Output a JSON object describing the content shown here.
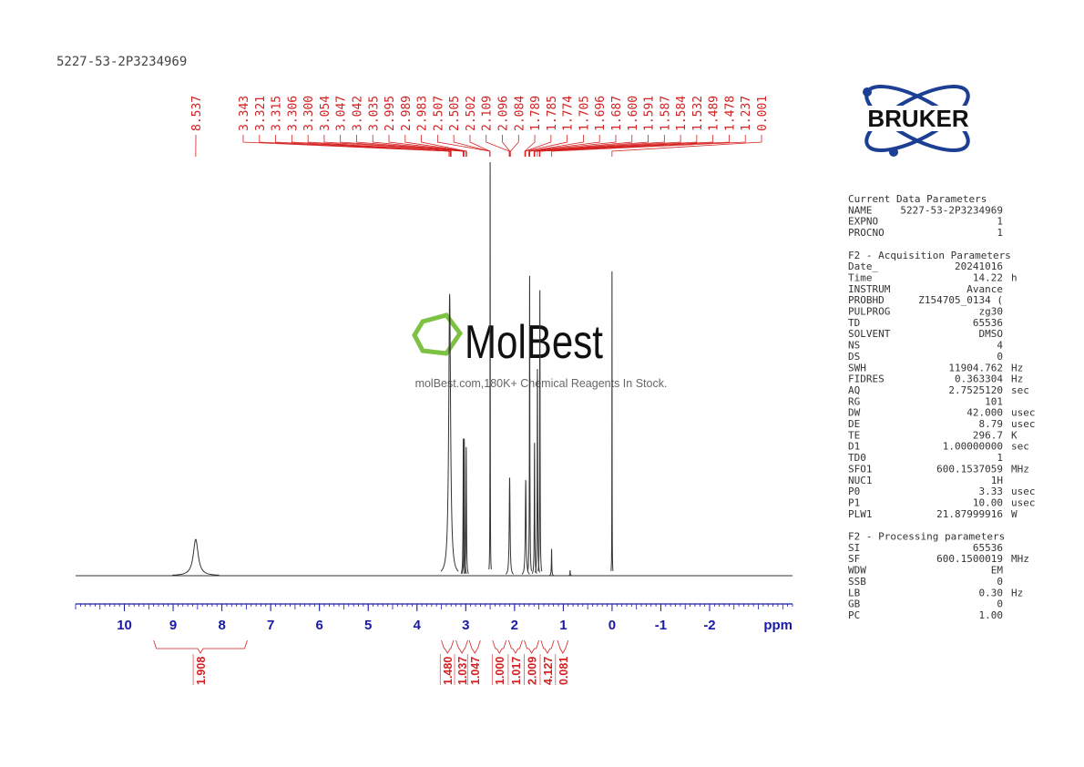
{
  "header": {
    "title": "5227-53-2P3234969"
  },
  "logo": {
    "text": "BRUKER"
  },
  "watermark": {
    "brand": "MolBest",
    "tagline": "molBest.com,180K+ Chemical Reagents In Stock."
  },
  "chart_data": {
    "type": "nmr",
    "xlim": [
      11,
      -3.7
    ],
    "xticks": [
      10,
      9,
      8,
      7,
      6,
      5,
      4,
      3,
      2,
      1,
      0,
      -1,
      -2
    ],
    "x_unit": "ppm",
    "ylim": [
      0,
      100
    ],
    "color": "#333333",
    "axis_color": "#1a1aa6",
    "annotation_color": "#d42020",
    "peaks": [
      {
        "ppm": 8.537,
        "intensity": 8.8,
        "fwhm": 0.12
      },
      {
        "ppm": 3.33,
        "intensity": 68,
        "fwhm": 0.045
      },
      {
        "ppm": 3.05,
        "intensity": 33,
        "fwhm": 0.012
      },
      {
        "ppm": 3.03,
        "intensity": 33,
        "fwhm": 0.012
      },
      {
        "ppm": 2.99,
        "intensity": 31,
        "fwhm": 0.012
      },
      {
        "ppm": 2.5,
        "intensity": 100,
        "fwhm": 0.006
      },
      {
        "ppm": 2.1,
        "intensity": 23.6,
        "fwhm": 0.02
      },
      {
        "ppm": 1.77,
        "intensity": 23,
        "fwhm": 0.02
      },
      {
        "ppm": 1.69,
        "intensity": 72.5,
        "fwhm": 0.01
      },
      {
        "ppm": 1.59,
        "intensity": 32,
        "fwhm": 0.012
      },
      {
        "ppm": 1.53,
        "intensity": 50,
        "fwhm": 0.012
      },
      {
        "ppm": 1.48,
        "intensity": 69,
        "fwhm": 0.01
      },
      {
        "ppm": 1.24,
        "intensity": 6.4,
        "fwhm": 0.01
      },
      {
        "ppm": 0.86,
        "intensity": 1.2,
        "fwhm": 0.01
      },
      {
        "ppm": 0.001,
        "intensity": 73.6,
        "fwhm": 0.005
      }
    ],
    "peak_labels": [
      {
        "value": 8.537,
        "label": "8.537"
      },
      {
        "value": 3.343,
        "label": "3.343"
      },
      {
        "value": 3.321,
        "label": "3.321"
      },
      {
        "value": 3.315,
        "label": "3.315"
      },
      {
        "value": 3.306,
        "label": "3.306"
      },
      {
        "value": 3.3,
        "label": "3.300"
      },
      {
        "value": 3.054,
        "label": "3.054"
      },
      {
        "value": 3.047,
        "label": "3.047"
      },
      {
        "value": 3.042,
        "label": "3.042"
      },
      {
        "value": 3.035,
        "label": "3.035"
      },
      {
        "value": 2.995,
        "label": "2.995"
      },
      {
        "value": 2.989,
        "label": "2.989"
      },
      {
        "value": 2.983,
        "label": "2.983"
      },
      {
        "value": 2.507,
        "label": "2.507"
      },
      {
        "value": 2.505,
        "label": "2.505"
      },
      {
        "value": 2.502,
        "label": "2.502"
      },
      {
        "value": 2.109,
        "label": "2.109"
      },
      {
        "value": 2.096,
        "label": "2.096"
      },
      {
        "value": 2.084,
        "label": "2.084"
      },
      {
        "value": 1.789,
        "label": "1.789"
      },
      {
        "value": 1.785,
        "label": "1.785"
      },
      {
        "value": 1.774,
        "label": "1.774"
      },
      {
        "value": 1.705,
        "label": "1.705"
      },
      {
        "value": 1.696,
        "label": "1.696"
      },
      {
        "value": 1.687,
        "label": "1.687"
      },
      {
        "value": 1.6,
        "label": "1.600"
      },
      {
        "value": 1.591,
        "label": "1.591"
      },
      {
        "value": 1.587,
        "label": "1.587"
      },
      {
        "value": 1.584,
        "label": "1.584"
      },
      {
        "value": 1.532,
        "label": "1.532"
      },
      {
        "value": 1.489,
        "label": "1.489"
      },
      {
        "value": 1.478,
        "label": "1.478"
      },
      {
        "value": 1.237,
        "label": "1.237"
      },
      {
        "value": 0.001,
        "label": "0.001"
      }
    ],
    "integrals": [
      {
        "range": [
          9.4,
          7.48
        ],
        "label": "1.908"
      },
      {
        "range": [
          3.5,
          3.25
        ],
        "label": "1.480"
      },
      {
        "range": [
          3.2,
          2.96
        ],
        "label": "1.037"
      },
      {
        "range": [
          2.93,
          2.7
        ],
        "label": "1.047"
      },
      {
        "range": [
          2.45,
          2.17
        ],
        "label": "1.000"
      },
      {
        "range": [
          2.12,
          1.84
        ],
        "label": "1.017"
      },
      {
        "range": [
          1.8,
          1.5
        ],
        "label": "2.009"
      },
      {
        "range": [
          1.46,
          1.19
        ],
        "label": "4.127"
      },
      {
        "range": [
          1.12,
          0.9
        ],
        "label": "0.081"
      }
    ]
  },
  "parameters": [
    {
      "title": "Current Data Parameters",
      "rows": [
        {
          "key": "NAME",
          "value": "5227-53-2P3234969"
        },
        {
          "key": "EXPNO",
          "value": "1"
        },
        {
          "key": "PROCNO",
          "value": "1"
        }
      ]
    },
    {
      "title": "F2 - Acquisition Parameters",
      "rows": [
        {
          "key": "Date_",
          "value": "20241016"
        },
        {
          "key": "Time",
          "value": "14.22",
          "unit": "h"
        },
        {
          "key": "INSTRUM",
          "value": "Avance"
        },
        {
          "key": "PROBHD",
          "value": "Z154705_0134 ("
        },
        {
          "key": "PULPROG",
          "value": "zg30"
        },
        {
          "key": "TD",
          "value": "65536"
        },
        {
          "key": "SOLVENT",
          "value": "DMSO"
        },
        {
          "key": "NS",
          "value": "4"
        },
        {
          "key": "DS",
          "value": "0"
        },
        {
          "key": "SWH",
          "value": "11904.762",
          "unit": "Hz"
        },
        {
          "key": "FIDRES",
          "value": "0.363304",
          "unit": "Hz"
        },
        {
          "key": "AQ",
          "value": "2.7525120",
          "unit": "sec"
        },
        {
          "key": "RG",
          "value": "101"
        },
        {
          "key": "DW",
          "value": "42.000",
          "unit": "usec"
        },
        {
          "key": "DE",
          "value": "8.79",
          "unit": "usec"
        },
        {
          "key": "TE",
          "value": "296.7",
          "unit": "K"
        },
        {
          "key": "D1",
          "value": "1.00000000",
          "unit": "sec"
        },
        {
          "key": "TD0",
          "value": "1"
        },
        {
          "key": "SFO1",
          "value": "600.1537059",
          "unit": "MHz"
        },
        {
          "key": "NUC1",
          "value": "1H"
        },
        {
          "key": "P0",
          "value": "3.33",
          "unit": "usec"
        },
        {
          "key": "P1",
          "value": "10.00",
          "unit": "usec"
        },
        {
          "key": "PLW1",
          "value": "21.87999916",
          "unit": "W"
        }
      ]
    },
    {
      "title": "F2 - Processing parameters",
      "rows": [
        {
          "key": "SI",
          "value": "65536"
        },
        {
          "key": "SF",
          "value": "600.1500019",
          "unit": "MHz"
        },
        {
          "key": "WDW",
          "value": "EM"
        },
        {
          "key": "SSB",
          "value": "0"
        },
        {
          "key": "LB",
          "value": "0.30",
          "unit": "Hz"
        },
        {
          "key": "GB",
          "value": "0"
        },
        {
          "key": "PC",
          "value": "1.00"
        }
      ]
    }
  ]
}
